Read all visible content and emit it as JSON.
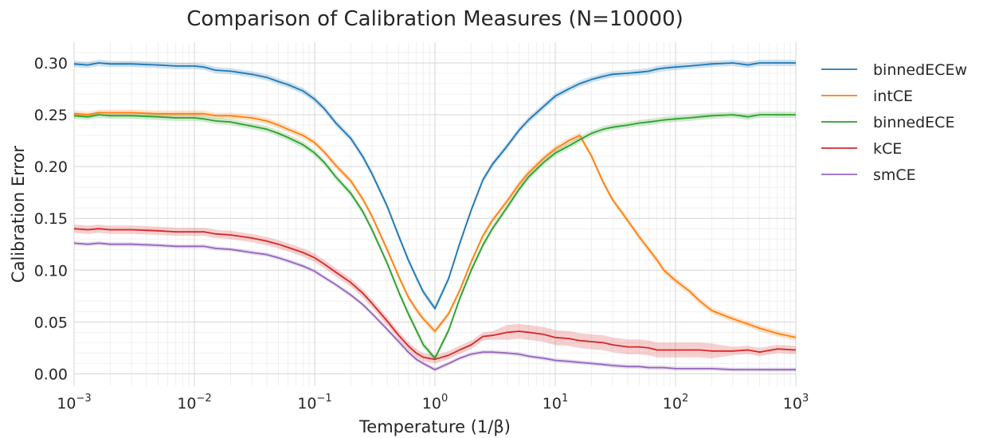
{
  "chart_data": {
    "type": "line",
    "title": "Comparison of Calibration Measures (N=10000)",
    "xlabel": "Temperature (1/β)",
    "ylabel": "Calibration Error",
    "xscale": "log",
    "xlim": [
      0.001,
      1000
    ],
    "ylim": [
      -0.012,
      0.32
    ],
    "x_ticks": [
      {
        "base": "10",
        "exp": "−3",
        "value": 0.001
      },
      {
        "base": "10",
        "exp": "−2",
        "value": 0.01
      },
      {
        "base": "10",
        "exp": "−1",
        "value": 0.1
      },
      {
        "base": "10",
        "exp": "0",
        "value": 1
      },
      {
        "base": "10",
        "exp": "1",
        "value": 10
      },
      {
        "base": "10",
        "exp": "2",
        "value": 100
      },
      {
        "base": "10",
        "exp": "3",
        "value": 1000
      }
    ],
    "y_ticks": [
      {
        "label": "0.00",
        "value": 0.0
      },
      {
        "label": "0.05",
        "value": 0.05
      },
      {
        "label": "0.10",
        "value": 0.1
      },
      {
        "label": "0.15",
        "value": 0.15
      },
      {
        "label": "0.20",
        "value": 0.2
      },
      {
        "label": "0.25",
        "value": 0.25
      },
      {
        "label": "0.30",
        "value": 0.3
      }
    ],
    "grid": true,
    "legend": "outside-right",
    "series": [
      {
        "name": "binnedECEw",
        "color": "#1f77b4",
        "band": 0.003,
        "x": [
          0.001,
          0.0013,
          0.0016,
          0.002,
          0.003,
          0.005,
          0.007,
          0.01,
          0.012,
          0.015,
          0.02,
          0.03,
          0.04,
          0.05,
          0.06,
          0.08,
          0.1,
          0.12,
          0.15,
          0.2,
          0.25,
          0.3,
          0.4,
          0.5,
          0.6,
          0.7,
          0.8,
          1.0,
          1.3,
          1.6,
          2,
          2.5,
          3,
          4,
          5,
          6,
          8,
          10,
          13,
          16,
          20,
          25,
          30,
          40,
          50,
          60,
          70,
          80,
          100,
          130,
          160,
          200,
          300,
          400,
          500,
          700,
          1000
        ],
        "y": [
          0.299,
          0.298,
          0.3,
          0.299,
          0.299,
          0.298,
          0.297,
          0.297,
          0.296,
          0.293,
          0.292,
          0.289,
          0.286,
          0.282,
          0.279,
          0.273,
          0.265,
          0.256,
          0.242,
          0.227,
          0.21,
          0.193,
          0.162,
          0.133,
          0.11,
          0.093,
          0.079,
          0.063,
          0.092,
          0.125,
          0.158,
          0.187,
          0.202,
          0.22,
          0.235,
          0.245,
          0.258,
          0.268,
          0.275,
          0.28,
          0.284,
          0.287,
          0.289,
          0.29,
          0.291,
          0.292,
          0.294,
          0.295,
          0.296,
          0.297,
          0.298,
          0.299,
          0.3,
          0.298,
          0.3,
          0.3,
          0.3
        ]
      },
      {
        "name": "intCE",
        "color": "#ff7f0e",
        "band": 0.003,
        "x": [
          0.001,
          0.0013,
          0.0016,
          0.002,
          0.003,
          0.005,
          0.007,
          0.01,
          0.012,
          0.015,
          0.02,
          0.03,
          0.04,
          0.05,
          0.06,
          0.08,
          0.1,
          0.12,
          0.15,
          0.2,
          0.25,
          0.3,
          0.4,
          0.5,
          0.6,
          0.7,
          0.8,
          1.0,
          1.3,
          1.6,
          2,
          2.5,
          3,
          4,
          5,
          6,
          8,
          10,
          13,
          16,
          20,
          25,
          30,
          40,
          50,
          60,
          70,
          80,
          100,
          130,
          160,
          200,
          300,
          400,
          500,
          700,
          1000
        ],
        "y": [
          0.251,
          0.25,
          0.252,
          0.252,
          0.252,
          0.251,
          0.251,
          0.251,
          0.251,
          0.249,
          0.249,
          0.247,
          0.244,
          0.24,
          0.236,
          0.23,
          0.223,
          0.214,
          0.201,
          0.186,
          0.169,
          0.152,
          0.12,
          0.094,
          0.074,
          0.062,
          0.053,
          0.041,
          0.058,
          0.08,
          0.108,
          0.133,
          0.148,
          0.167,
          0.183,
          0.194,
          0.208,
          0.217,
          0.225,
          0.23,
          0.21,
          0.185,
          0.168,
          0.148,
          0.132,
          0.12,
          0.11,
          0.1,
          0.09,
          0.08,
          0.07,
          0.061,
          0.053,
          0.048,
          0.044,
          0.039,
          0.035
        ]
      },
      {
        "name": "binnedECE",
        "color": "#2ca02c",
        "band": 0.003,
        "x": [
          0.001,
          0.0013,
          0.0016,
          0.002,
          0.003,
          0.005,
          0.007,
          0.01,
          0.012,
          0.015,
          0.02,
          0.03,
          0.04,
          0.05,
          0.06,
          0.08,
          0.1,
          0.12,
          0.15,
          0.2,
          0.25,
          0.3,
          0.4,
          0.5,
          0.6,
          0.7,
          0.8,
          1.0,
          1.3,
          1.6,
          2,
          2.5,
          3,
          4,
          5,
          6,
          8,
          10,
          13,
          16,
          20,
          25,
          30,
          40,
          50,
          60,
          70,
          80,
          100,
          130,
          160,
          200,
          300,
          400,
          500,
          700,
          1000
        ],
        "y": [
          0.249,
          0.248,
          0.25,
          0.249,
          0.249,
          0.248,
          0.247,
          0.247,
          0.246,
          0.244,
          0.243,
          0.239,
          0.236,
          0.232,
          0.228,
          0.221,
          0.213,
          0.204,
          0.19,
          0.174,
          0.157,
          0.139,
          0.107,
          0.079,
          0.058,
          0.042,
          0.028,
          0.015,
          0.042,
          0.072,
          0.1,
          0.124,
          0.14,
          0.161,
          0.178,
          0.19,
          0.204,
          0.213,
          0.22,
          0.226,
          0.232,
          0.236,
          0.238,
          0.24,
          0.242,
          0.243,
          0.244,
          0.245,
          0.246,
          0.247,
          0.248,
          0.249,
          0.25,
          0.248,
          0.25,
          0.25,
          0.25
        ]
      },
      {
        "name": "kCE",
        "color": "#d62728",
        "band": 0.004,
        "x": [
          0.001,
          0.0013,
          0.0016,
          0.002,
          0.003,
          0.005,
          0.007,
          0.01,
          0.012,
          0.015,
          0.02,
          0.03,
          0.04,
          0.05,
          0.06,
          0.08,
          0.1,
          0.12,
          0.15,
          0.2,
          0.25,
          0.3,
          0.4,
          0.5,
          0.6,
          0.7,
          0.8,
          1.0,
          1.3,
          1.6,
          2,
          2.5,
          3,
          4,
          5,
          6,
          8,
          10,
          13,
          16,
          20,
          25,
          30,
          40,
          50,
          60,
          70,
          80,
          100,
          130,
          160,
          200,
          300,
          400,
          500,
          700,
          1000
        ],
        "y": [
          0.14,
          0.139,
          0.14,
          0.139,
          0.139,
          0.138,
          0.137,
          0.137,
          0.137,
          0.135,
          0.134,
          0.131,
          0.128,
          0.125,
          0.122,
          0.117,
          0.112,
          0.106,
          0.098,
          0.088,
          0.078,
          0.068,
          0.051,
          0.037,
          0.027,
          0.02,
          0.016,
          0.014,
          0.018,
          0.023,
          0.028,
          0.036,
          0.037,
          0.04,
          0.041,
          0.04,
          0.038,
          0.035,
          0.034,
          0.032,
          0.031,
          0.03,
          0.028,
          0.026,
          0.026,
          0.025,
          0.023,
          0.023,
          0.023,
          0.023,
          0.023,
          0.022,
          0.022,
          0.023,
          0.021,
          0.024,
          0.023
        ]
      },
      {
        "name": "smCE",
        "color": "#9467bd",
        "band": 0.002,
        "x": [
          0.001,
          0.0013,
          0.0016,
          0.002,
          0.003,
          0.005,
          0.007,
          0.01,
          0.012,
          0.015,
          0.02,
          0.03,
          0.04,
          0.05,
          0.06,
          0.08,
          0.1,
          0.12,
          0.15,
          0.2,
          0.25,
          0.3,
          0.4,
          0.5,
          0.6,
          0.7,
          0.8,
          1.0,
          1.3,
          1.6,
          2,
          2.5,
          3,
          4,
          5,
          6,
          8,
          10,
          13,
          16,
          20,
          25,
          30,
          40,
          50,
          60,
          70,
          80,
          100,
          130,
          160,
          200,
          300,
          400,
          500,
          700,
          1000
        ],
        "y": [
          0.126,
          0.125,
          0.126,
          0.125,
          0.125,
          0.124,
          0.123,
          0.123,
          0.123,
          0.121,
          0.12,
          0.117,
          0.115,
          0.112,
          0.109,
          0.104,
          0.099,
          0.093,
          0.086,
          0.076,
          0.067,
          0.058,
          0.043,
          0.031,
          0.021,
          0.014,
          0.01,
          0.004,
          0.01,
          0.015,
          0.019,
          0.021,
          0.021,
          0.02,
          0.019,
          0.017,
          0.015,
          0.013,
          0.012,
          0.011,
          0.01,
          0.009,
          0.008,
          0.007,
          0.007,
          0.006,
          0.006,
          0.006,
          0.005,
          0.005,
          0.005,
          0.005,
          0.004,
          0.004,
          0.004,
          0.004,
          0.004
        ]
      }
    ]
  }
}
